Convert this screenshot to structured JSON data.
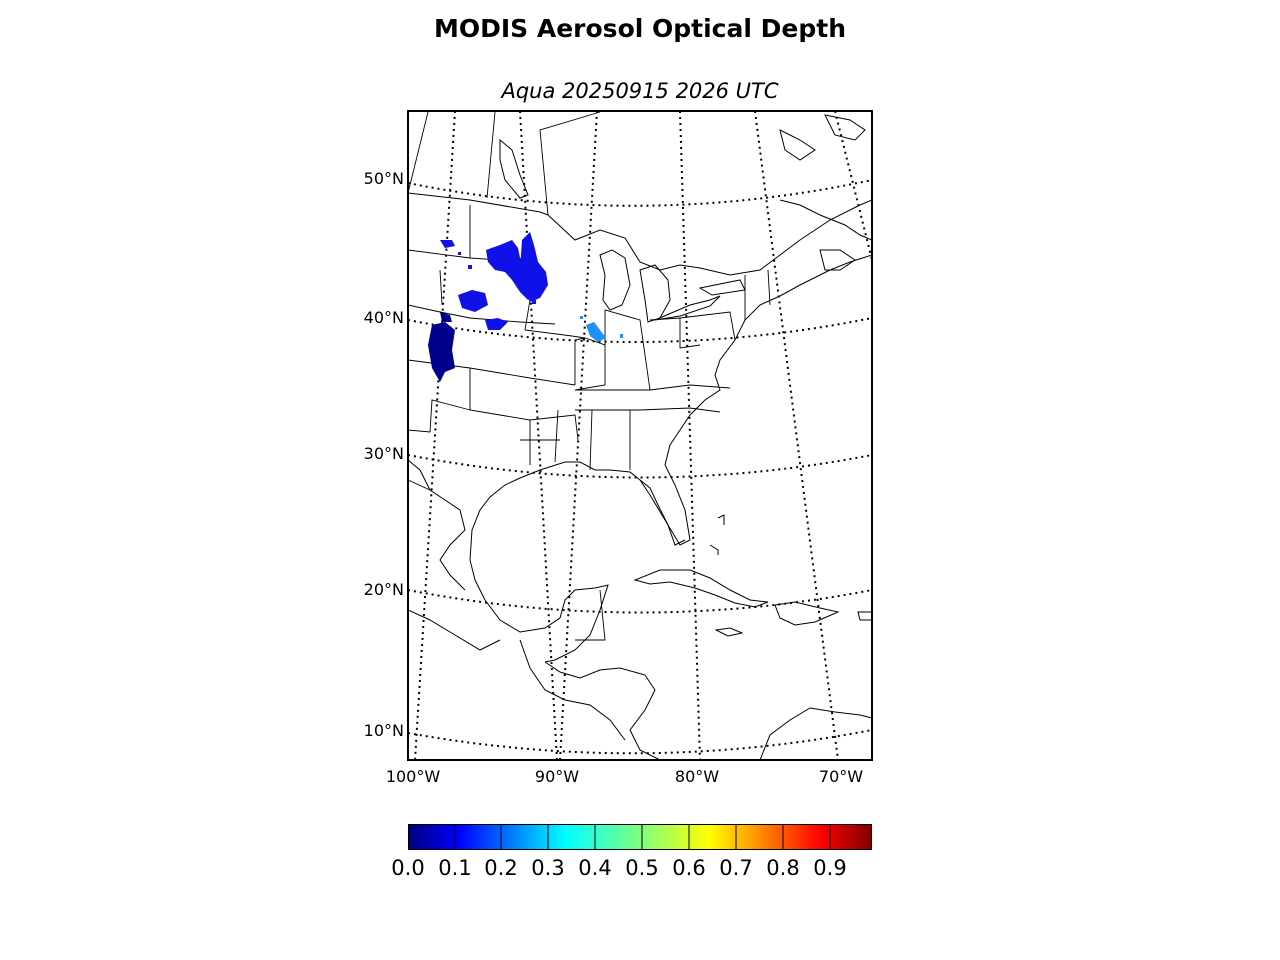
{
  "title": "MODIS Aerosol Optical Depth",
  "subtitle": "Aqua 20250915 2026 UTC",
  "lat_labels": [
    "50°N",
    "40°N",
    "30°N",
    "20°N",
    "10°N"
  ],
  "lon_labels": [
    "100°W",
    "90°W",
    "80°W",
    "70°W"
  ],
  "colorbar": {
    "tick_labels": [
      "0.0",
      "0.1",
      "0.2",
      "0.3",
      "0.4",
      "0.5",
      "0.6",
      "0.7",
      "0.8",
      "0.9"
    ],
    "colormap": "jet",
    "colors": [
      "#00007f",
      "#0000ff",
      "#007fff",
      "#00ffff",
      "#7fff7f",
      "#ffff00",
      "#ff7f00",
      "#ff0000",
      "#7f0000"
    ]
  },
  "aod_colors": {
    "very_low": "#00008b",
    "low": "#1010e8",
    "mid_low": "#1e90ff"
  }
}
